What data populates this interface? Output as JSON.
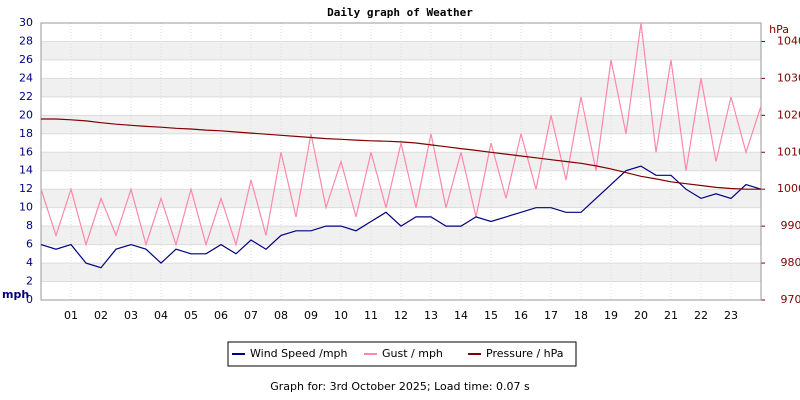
{
  "chart_data": {
    "type": "line",
    "title": "Daily graph of Weather",
    "y_label": "mph",
    "y2_label": "hPa",
    "footer": "Graph for: 3rd October 2025; Load time: 0.07 s",
    "x": [
      0,
      0.5,
      1,
      1.5,
      2,
      2.5,
      3,
      3.5,
      4,
      4.5,
      5,
      5.5,
      6,
      6.5,
      7,
      7.5,
      8,
      8.5,
      9,
      9.5,
      10,
      10.5,
      11,
      11.5,
      12,
      12.5,
      13,
      13.5,
      14,
      14.5,
      15,
      15.5,
      16,
      16.5,
      17,
      17.5,
      18,
      18.5,
      19,
      19.5,
      20,
      20.5,
      21,
      21.5,
      22,
      22.5,
      23,
      23.5,
      24
    ],
    "xlim": [
      0,
      24
    ],
    "xticks": [
      {
        "value": 1,
        "label": "01"
      },
      {
        "value": 2,
        "label": "02"
      },
      {
        "value": 3,
        "label": "03"
      },
      {
        "value": 4,
        "label": "04"
      },
      {
        "value": 5,
        "label": "05"
      },
      {
        "value": 6,
        "label": "06"
      },
      {
        "value": 7,
        "label": "07"
      },
      {
        "value": 8,
        "label": "08"
      },
      {
        "value": 9,
        "label": "09"
      },
      10,
      11,
      12,
      13,
      14,
      15,
      16,
      17,
      18,
      19,
      20,
      21,
      22,
      23
    ],
    "ylim": [
      0,
      30
    ],
    "yticks": [
      0,
      2,
      4,
      6,
      8,
      10,
      12,
      14,
      16,
      18,
      20,
      22,
      24,
      26,
      28,
      30
    ],
    "y2lim": [
      970,
      1045
    ],
    "y2ticks": [
      970,
      980,
      990,
      1000,
      1010,
      1020,
      1030,
      1040
    ],
    "series": [
      {
        "name": "Wind Speed /mph",
        "color": "#000080",
        "values": [
          6,
          5.5,
          6,
          4,
          3.5,
          5.5,
          6,
          5.5,
          4,
          5.5,
          5,
          5,
          6,
          5,
          6.5,
          5.5,
          7,
          7.5,
          7.5,
          8,
          8,
          7.5,
          8.5,
          9.5,
          8,
          9,
          9,
          8,
          8,
          9,
          8.5,
          9,
          9.5,
          10,
          10,
          9.5,
          9.5,
          11,
          12.5,
          14,
          14.5,
          13.5,
          13.5,
          12,
          11,
          11.5,
          11,
          12.5,
          12
        ]
      },
      {
        "name": "Gust / mph",
        "color": "#ff88aa",
        "values": [
          12,
          7,
          12,
          6,
          11,
          7,
          12,
          6,
          11,
          6,
          12,
          6,
          11,
          6,
          13,
          7,
          16,
          9,
          18,
          10,
          15,
          9,
          16,
          10,
          17,
          10,
          18,
          10,
          16,
          9,
          17,
          11,
          18,
          12,
          20,
          13,
          22,
          14,
          26,
          18,
          30,
          16,
          26,
          14,
          24,
          15,
          22,
          16,
          21
        ]
      },
      {
        "name": "Pressure / hPa",
        "color": "#800000",
        "axis": "y2",
        "values": [
          1019.0,
          1019.0,
          1018.8,
          1018.5,
          1018.0,
          1017.6,
          1017.3,
          1017.0,
          1016.8,
          1016.5,
          1016.3,
          1016.0,
          1015.8,
          1015.5,
          1015.2,
          1014.9,
          1014.6,
          1014.3,
          1014.0,
          1013.7,
          1013.5,
          1013.3,
          1013.1,
          1013.0,
          1012.8,
          1012.5,
          1012.0,
          1011.5,
          1011.0,
          1010.5,
          1010.0,
          1009.5,
          1009.0,
          1008.5,
          1008.0,
          1007.5,
          1007.0,
          1006.3,
          1005.5,
          1004.5,
          1003.5,
          1002.8,
          1002.0,
          1001.5,
          1001.0,
          1000.5,
          1000.2,
          1000.0,
          1000.0
        ]
      }
    ]
  }
}
